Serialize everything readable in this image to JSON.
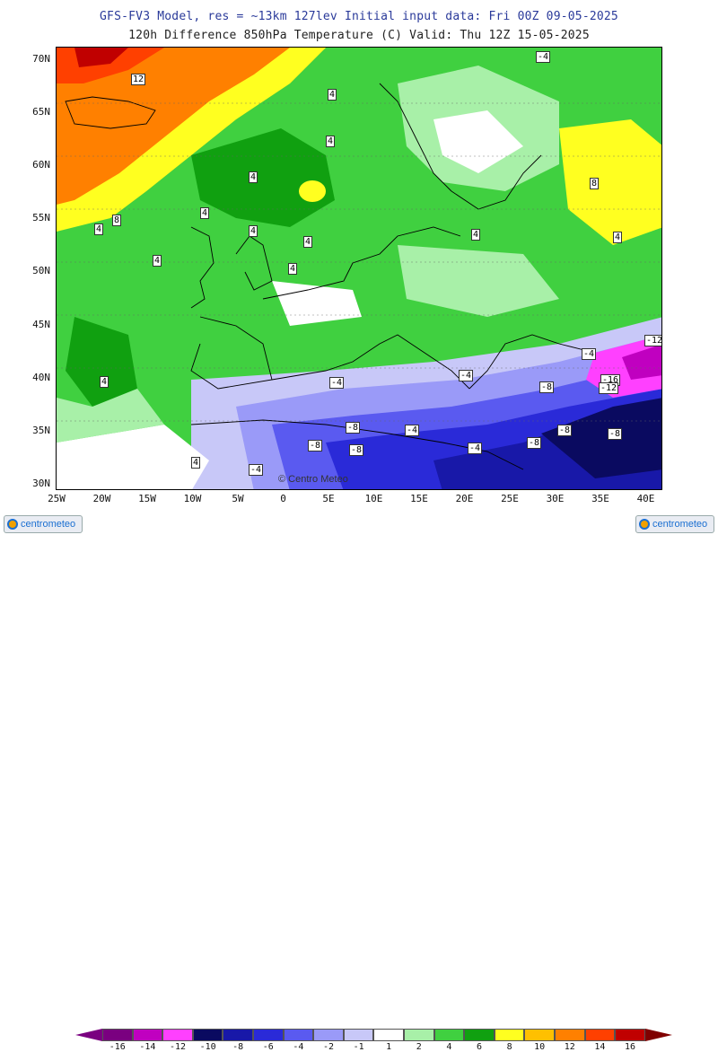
{
  "title_line1": "GFS-FV3 Model, res = ~13km 127lev   Initial input data: Fri 00Z 09-05-2025",
  "title_line2": "120h Difference 850hPa Temperature (C)  Valid: Thu 12Z 15-05-2025",
  "lat_ticks": [
    "70N",
    "65N",
    "60N",
    "55N",
    "50N",
    "45N",
    "40N",
    "35N",
    "30N"
  ],
  "lon_ticks": [
    "25W",
    "20W",
    "15W",
    "10W",
    "5W",
    "0",
    "5E",
    "10E",
    "15E",
    "20E",
    "25E",
    "30E",
    "35E",
    "40E"
  ],
  "legend": {
    "labels": [
      "-16",
      "-14",
      "-12",
      "-10",
      "-8",
      "-6",
      "-4",
      "-2",
      "-1",
      "1",
      "2",
      "4",
      "6",
      "8",
      "10",
      "12",
      "14",
      "16"
    ],
    "colors": [
      "#7a0080",
      "#c000c0",
      "#ff40ff",
      "#0a0a60",
      "#1818a8",
      "#2a2ad8",
      "#5a5af0",
      "#9a9af8",
      "#c8c8f8",
      "#ffffff",
      "#a8f0a8",
      "#40d040",
      "#10a010",
      "#ffff20",
      "#ffc000",
      "#ff8000",
      "#ff4000",
      "#c00000"
    ],
    "under_color": "#7a0080",
    "over_color": "#800000"
  },
  "logo_text": "centrometeo",
  "watermark": "© Centro Meteo"
}
